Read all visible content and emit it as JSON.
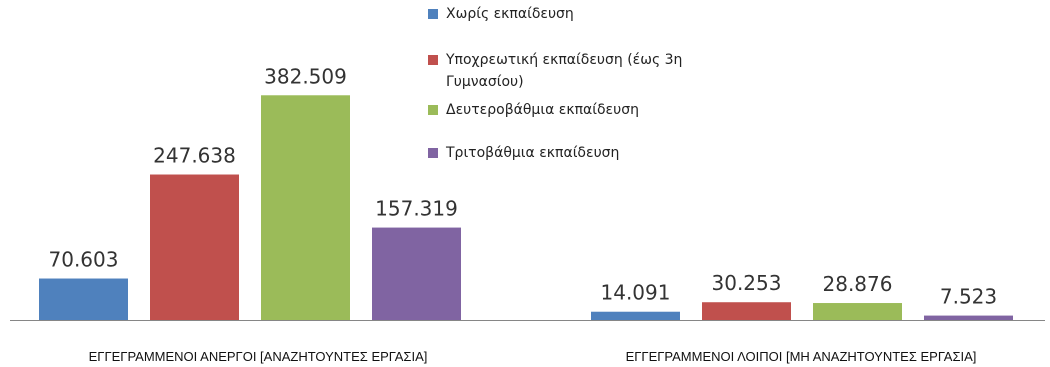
{
  "chart_data": {
    "type": "bar",
    "categories": [
      "ΕΓΓΕΓΡΑΜΜΕΝΟΙ ΑΝΕΡΓΟΙ [ΑΝΑΖΗΤΟΥΝΤΕΣ ΕΡΓΑΣΙΑ]",
      "ΕΓΓΕΓΡΑΜΜΕΝΟΙ ΛΟΙΠΟΙ [ΜΗ ΑΝΑΖΗΤΟΥΝΤΕΣ ΕΡΓΑΣΙΑ]"
    ],
    "series": [
      {
        "name": "Χωρίς εκπαίδευση",
        "color": "#4f81bd",
        "values": [
          70603,
          14091
        ],
        "labels": [
          "70.603",
          "14.091"
        ]
      },
      {
        "name": "Υποχρεωτική εκπαίδευση (έως 3η Γυμνασίου)",
        "name_lines": [
          "Υποχρεωτική εκπαίδευση (έως 3η",
          "Γυμνασίου)"
        ],
        "color": "#c0504d",
        "values": [
          247638,
          30253
        ],
        "labels": [
          "247.638",
          "30.253"
        ]
      },
      {
        "name": "Δευτεροβάθμια εκπαίδευση",
        "color": "#9bbb59",
        "values": [
          382509,
          28876
        ],
        "labels": [
          "382.509",
          "28.876"
        ]
      },
      {
        "name": "Τριτοβάθμια εκπαίδευση",
        "color": "#8064a2",
        "values": [
          157319,
          7523
        ],
        "labels": [
          "157.319",
          "7.523"
        ]
      }
    ],
    "ylim": [
      0,
      400000
    ],
    "grid": false,
    "legend": "top-center",
    "axis_color": "#868686"
  }
}
